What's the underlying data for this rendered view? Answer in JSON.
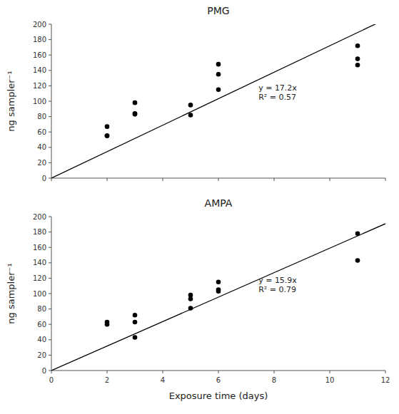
{
  "chart_data": [
    {
      "type": "scatter",
      "title": "PMG",
      "x": [
        2,
        2,
        2,
        3,
        3,
        3,
        5,
        5,
        6,
        6,
        6,
        11,
        11,
        11
      ],
      "values": [
        67,
        55,
        55,
        98,
        84,
        83,
        95,
        82,
        148,
        135,
        115,
        172,
        155,
        147
      ],
      "color": "black",
      "trend": {
        "slope": 17.2,
        "color": "black"
      },
      "annotations": [
        "y = 17.2x",
        "R² = 0.57"
      ],
      "y_label": "ng sampler⁻¹",
      "xlim": [
        0,
        12
      ],
      "ylim": [
        0,
        200
      ],
      "xticks": [
        0,
        2,
        4,
        6,
        8,
        10,
        12
      ],
      "yticks": [
        0,
        20,
        40,
        60,
        80,
        100,
        120,
        140,
        160,
        180,
        200
      ],
      "tick_labels": "y",
      "grid": false
    },
    {
      "type": "scatter",
      "title": "AMPA",
      "x": [
        2,
        2,
        3,
        3,
        3,
        5,
        5,
        5,
        6,
        6,
        6,
        11,
        11
      ],
      "values": [
        63,
        60,
        72,
        63,
        43,
        81,
        93,
        98,
        115,
        105,
        103,
        178,
        143
      ],
      "color": "black",
      "trend": {
        "slope": 15.9,
        "color": "black"
      },
      "annotations": [
        "y = 15.9x",
        "R² = 0.79"
      ],
      "x_label": "Exposure time (days)",
      "y_label": "ng sampler⁻¹",
      "xlim": [
        0,
        12
      ],
      "ylim": [
        0,
        200
      ],
      "xticks": [
        0,
        2,
        4,
        6,
        8,
        10,
        12
      ],
      "yticks": [
        0,
        20,
        40,
        60,
        80,
        100,
        120,
        140,
        160,
        180,
        200
      ],
      "grid": false
    }
  ]
}
